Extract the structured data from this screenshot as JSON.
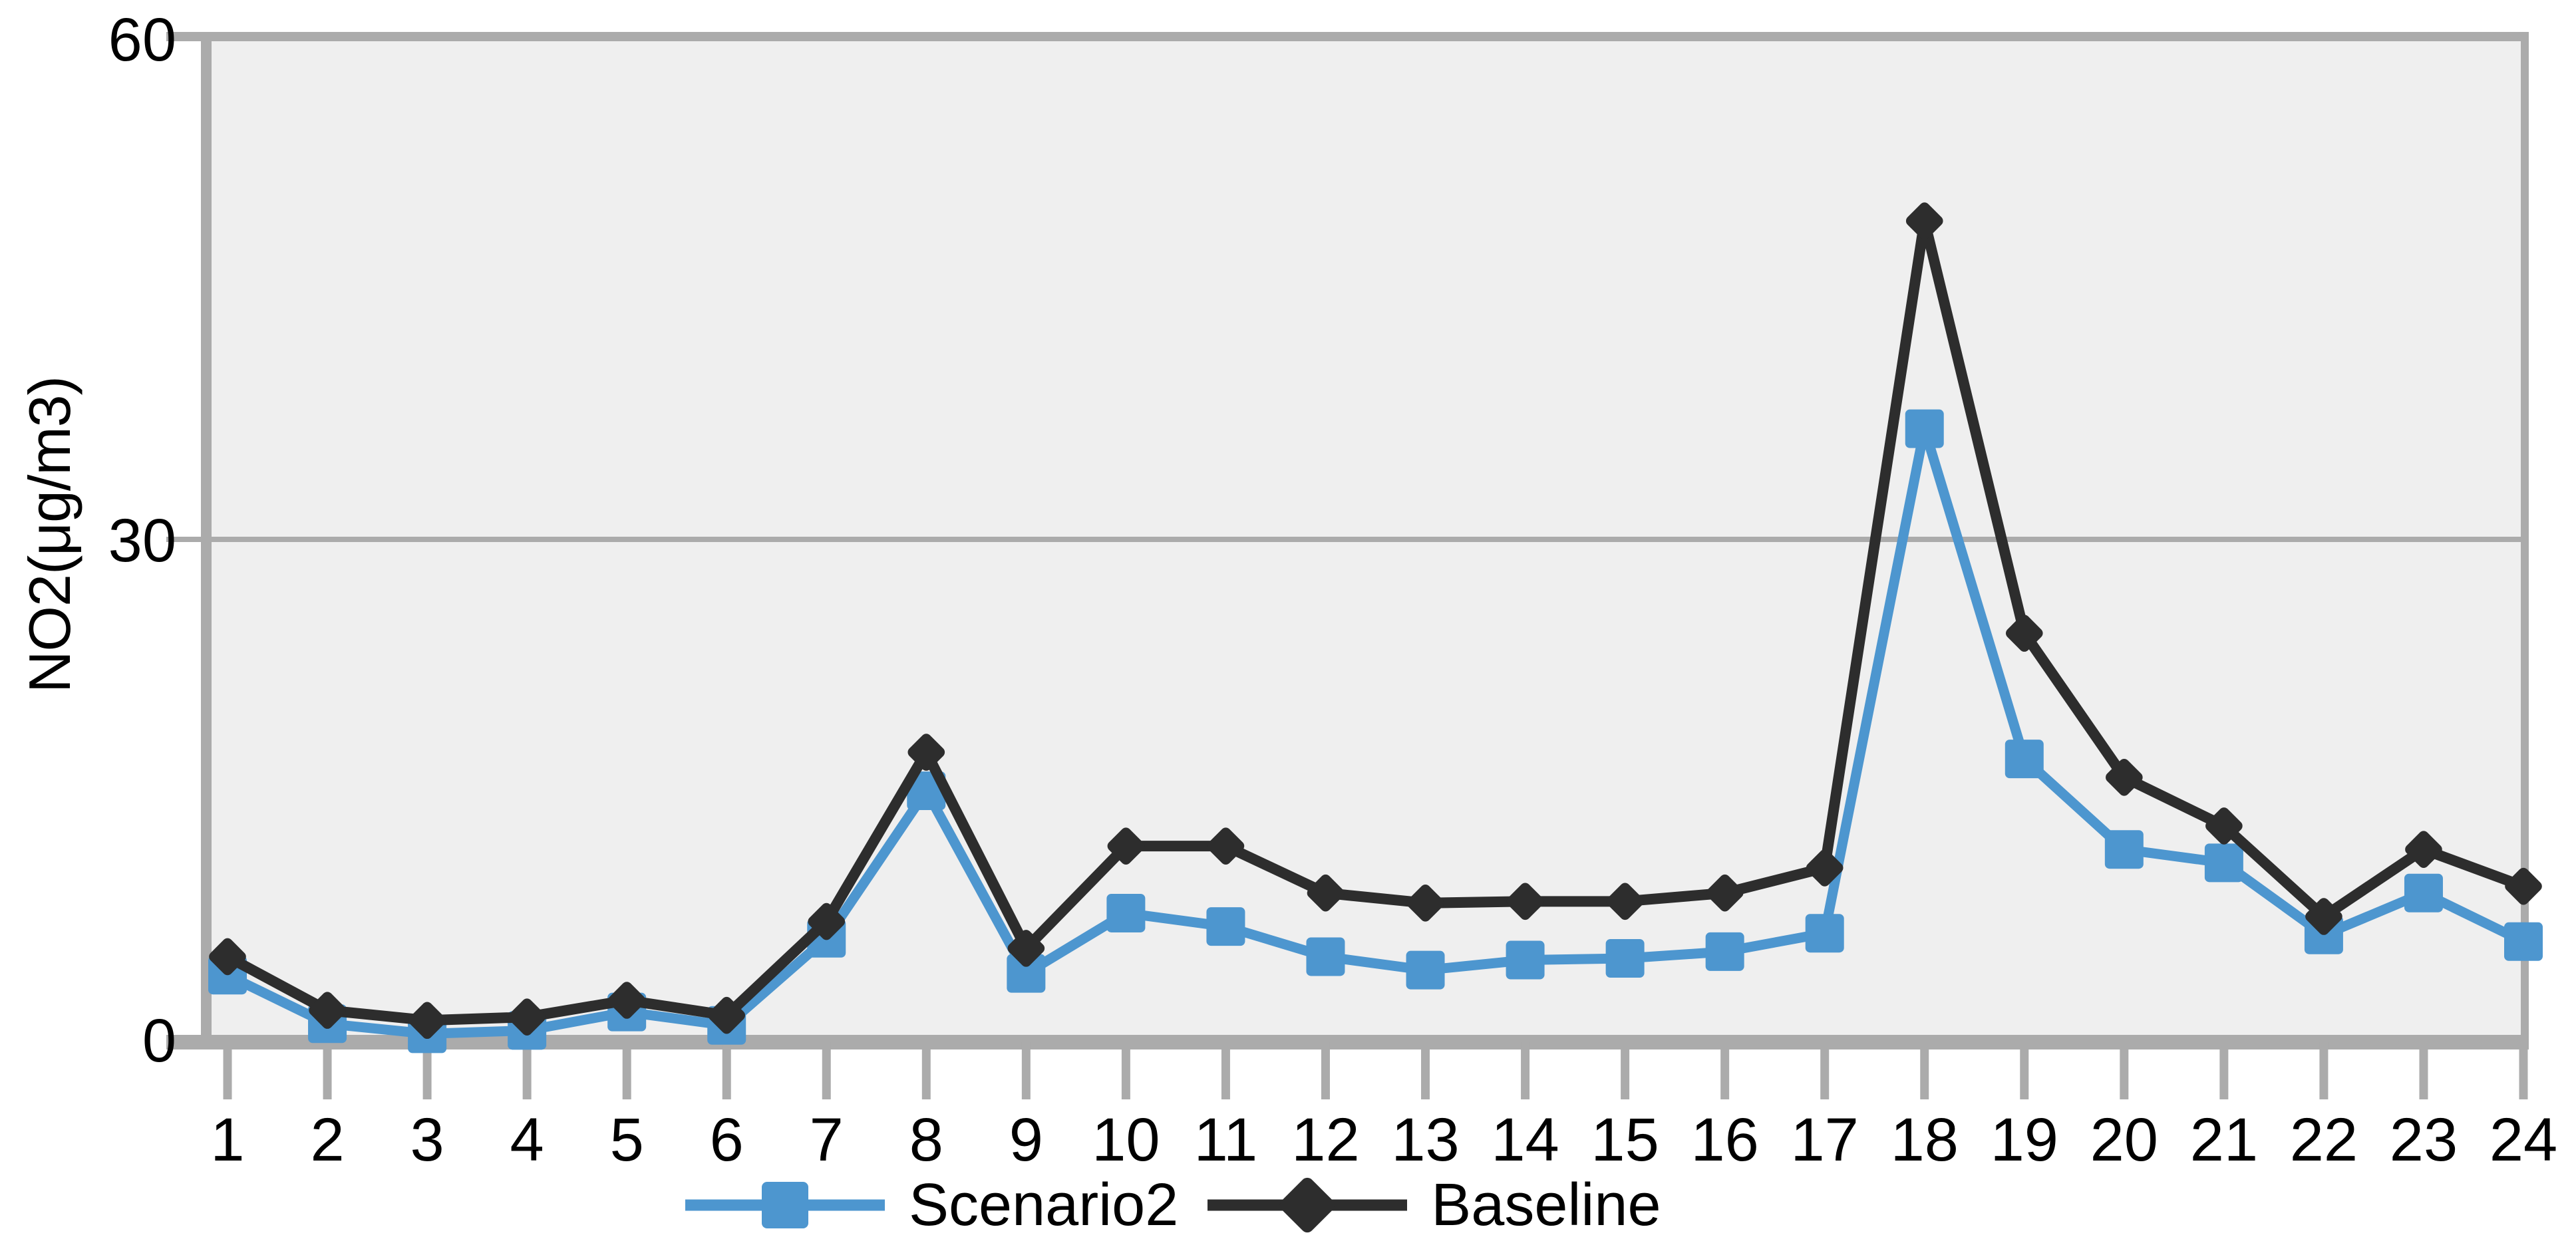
{
  "chart_data": {
    "type": "line",
    "title": "",
    "xlabel": "",
    "ylabel": "NO2(μg/m3)",
    "categories": [
      "1",
      "2",
      "3",
      "4",
      "5",
      "6",
      "7",
      "8",
      "9",
      "10",
      "11",
      "12",
      "13",
      "14",
      "15",
      "16",
      "17",
      "18",
      "19",
      "20",
      "21",
      "22",
      "23",
      "24"
    ],
    "series": [
      {
        "name": "Scenario2",
        "color": "#4D96CF",
        "marker": "square",
        "values": [
          4.0,
          1.1,
          0.5,
          0.7,
          1.8,
          1.0,
          6.2,
          15.0,
          4.1,
          7.7,
          6.9,
          5.1,
          4.3,
          4.9,
          5.0,
          5.4,
          6.5,
          36.6,
          16.9,
          11.5,
          10.7,
          6.4,
          8.9,
          6.0
        ]
      },
      {
        "name": "Baseline",
        "color": "#2D2D2D",
        "marker": "diamond",
        "values": [
          5.1,
          1.9,
          1.3,
          1.5,
          2.5,
          1.6,
          7.2,
          17.3,
          5.6,
          11.7,
          11.7,
          8.9,
          8.3,
          8.4,
          8.4,
          8.9,
          10.4,
          49.0,
          24.4,
          15.8,
          12.9,
          7.5,
          11.5,
          9.3
        ]
      }
    ],
    "ylim": [
      0,
      60
    ],
    "yticks": [
      0,
      30,
      60
    ],
    "grid": "horizontal",
    "legend_position": "bottom"
  },
  "styles": {
    "background": "#FFFFFF",
    "plot_background": "#EFEFEF",
    "axis_color": "#ABABAB",
    "grid_color": "#ABABAB",
    "text_color": "#000000"
  }
}
